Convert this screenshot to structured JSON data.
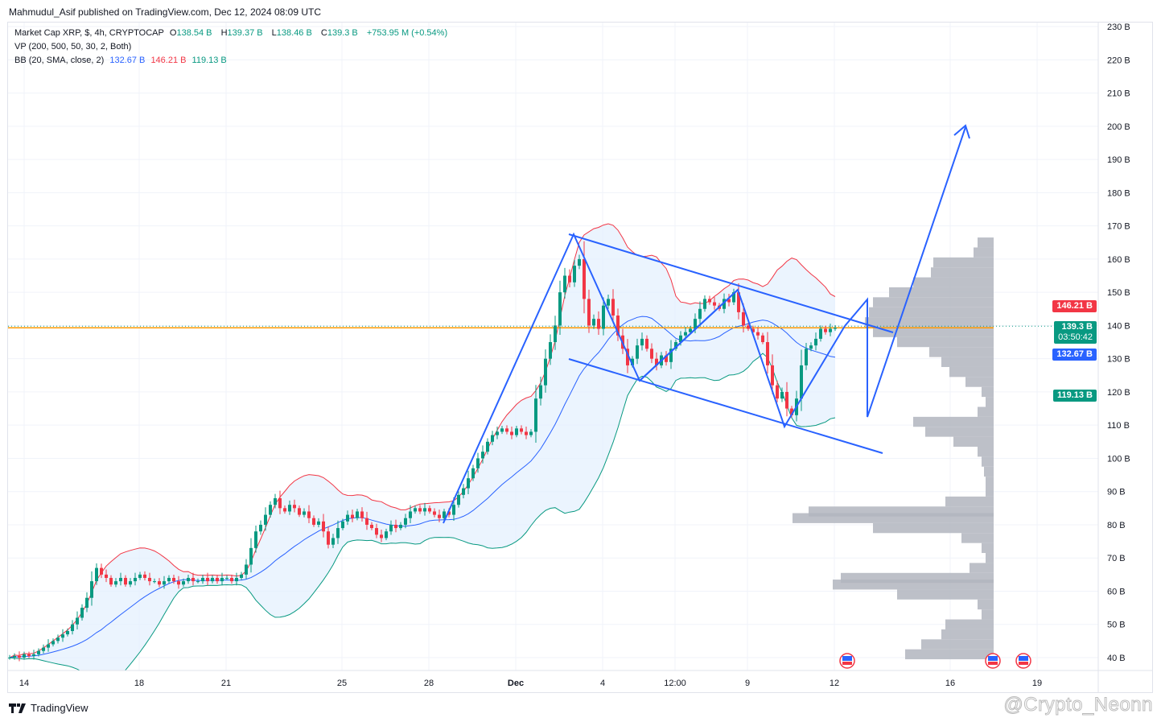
{
  "publisher": "Mahmudul_Asif published on TradingView.com, Dec 12, 2024 08:09 UTC",
  "legend": {
    "symbol": "Market Cap XRP, $, 4h, CRYPTOCAP",
    "o_label": "O",
    "o": "138.54 B",
    "h_label": "H",
    "h": "139.37 B",
    "l_label": "L",
    "l": "138.46 B",
    "c_label": "C",
    "c": "139.3 B",
    "change": "+753.95 M (+0.54%)",
    "vp": "VP (200, 500, 50, 30, 2, Both)",
    "bb": "BB (20, SMA, close, 2)",
    "bb_basis": "132.67 B",
    "bb_upper": "146.21 B",
    "bb_lower": "119.13 B"
  },
  "price_tags": {
    "upper": "146.21 B",
    "last": "139.3 B",
    "countdown": "03:50:42",
    "basis": "132.67 B",
    "lower": "119.13 B"
  },
  "colors": {
    "up": "#089981",
    "down": "#f23645",
    "bb_basis": "#2962ff",
    "bb_upper": "#f23645",
    "bb_lower": "#089981",
    "bb_fill": "#e3effd",
    "volume_profile": "#b2b5be",
    "drawing": "#2962ff",
    "last_price_line": "#ff9800"
  },
  "footer": {
    "logo": "TradingView",
    "watermark": "@Crypto_Neonn"
  },
  "chart_data": {
    "type": "candlestick",
    "interval": "4h",
    "unit": "B",
    "ylim": [
      40,
      230
    ],
    "y_ticks": [
      "230 B",
      "220 B",
      "210 B",
      "200 B",
      "190 B",
      "180 B",
      "170 B",
      "160 B",
      "150 B",
      "140 B",
      "130 B",
      "120 B",
      "110 B",
      "100 B",
      "90 B",
      "80 B",
      "70 B",
      "60 B",
      "50 B",
      "40 B"
    ],
    "x_ticks": [
      "14",
      "18",
      "21",
      "25",
      "28",
      "Dec",
      "4",
      "12:00",
      "9",
      "12",
      "16",
      "19"
    ],
    "grid": true,
    "closes": [
      40,
      40.5,
      40,
      41,
      40.5,
      41,
      42,
      43,
      44,
      45,
      46,
      47,
      48,
      50,
      52,
      55,
      58,
      63,
      67,
      65,
      64,
      62,
      63,
      64,
      62,
      63,
      64,
      65,
      64,
      63,
      63,
      62,
      63,
      64,
      63,
      62,
      63,
      64,
      63,
      63,
      64,
      63,
      64,
      63,
      64,
      64,
      63,
      64,
      65,
      68,
      73,
      78,
      80,
      83,
      86,
      88,
      85,
      84,
      86,
      85,
      83,
      84,
      82,
      80,
      81,
      78,
      74,
      76,
      79,
      81,
      83,
      82,
      84,
      82,
      80,
      79,
      77,
      76,
      78,
      80,
      79,
      80,
      82,
      84,
      85,
      84,
      85,
      84,
      83,
      82,
      84,
      83,
      86,
      89,
      91,
      94,
      97,
      100,
      102,
      105,
      107,
      108,
      109,
      108,
      107,
      109,
      108,
      107,
      108,
      118,
      122,
      130,
      135,
      140,
      150,
      155,
      153,
      158,
      160,
      148,
      140,
      142,
      139,
      146,
      148,
      143,
      137,
      133,
      128,
      130,
      134,
      136,
      133,
      130,
      128,
      131,
      129,
      133,
      135,
      137,
      138,
      139,
      142,
      145,
      148,
      147,
      146,
      145,
      148,
      147,
      150,
      144,
      140,
      139,
      138,
      137,
      135,
      128,
      122,
      118,
      120,
      115,
      113,
      118,
      128,
      133,
      134,
      136,
      139,
      138,
      139,
      139.3
    ],
    "last_price": 139.3,
    "bollinger": {
      "period": 20,
      "stddev": 2,
      "basis": 132.67,
      "upper": 146.21,
      "lower": 119.13
    },
    "volume_profile": [
      {
        "price": 165,
        "volume": 20
      },
      {
        "price": 162,
        "volume": 25
      },
      {
        "price": 159,
        "volume": 75
      },
      {
        "price": 156,
        "volume": 78
      },
      {
        "price": 153,
        "volume": 100
      },
      {
        "price": 150,
        "volume": 130
      },
      {
        "price": 147,
        "volume": 150
      },
      {
        "price": 144,
        "volume": 155
      },
      {
        "price": 141,
        "volume": 160
      },
      {
        "price": 138,
        "volume": 150
      },
      {
        "price": 135,
        "volume": 120
      },
      {
        "price": 132,
        "volume": 80
      },
      {
        "price": 129,
        "volume": 65
      },
      {
        "price": 126,
        "volume": 55
      },
      {
        "price": 123,
        "volume": 35
      },
      {
        "price": 120,
        "volume": 15
      },
      {
        "price": 117,
        "volume": 10
      },
      {
        "price": 114,
        "volume": 20
      },
      {
        "price": 111,
        "volume": 100
      },
      {
        "price": 108,
        "volume": 85
      },
      {
        "price": 105,
        "volume": 50
      },
      {
        "price": 102,
        "volume": 20
      },
      {
        "price": 99,
        "volume": 15
      },
      {
        "price": 96,
        "volume": 12
      },
      {
        "price": 93,
        "volume": 10
      },
      {
        "price": 90,
        "volume": 10
      },
      {
        "price": 87,
        "volume": 60
      },
      {
        "price": 84,
        "volume": 230
      },
      {
        "price": 82,
        "volume": 250
      },
      {
        "price": 79,
        "volume": 150
      },
      {
        "price": 76,
        "volume": 40
      },
      {
        "price": 73,
        "volume": 15
      },
      {
        "price": 70,
        "volume": 10
      },
      {
        "price": 67,
        "volume": 30
      },
      {
        "price": 64,
        "volume": 190
      },
      {
        "price": 62,
        "volume": 200
      },
      {
        "price": 59,
        "volume": 120
      },
      {
        "price": 56,
        "volume": 20
      },
      {
        "price": 53,
        "volume": 15
      },
      {
        "price": 50,
        "volume": 60
      },
      {
        "price": 47,
        "volume": 65
      },
      {
        "price": 44,
        "volume": 90
      },
      {
        "price": 41,
        "volume": 110
      }
    ],
    "events": [
      "us-economic-event",
      "us-economic-event",
      "us-economic-event"
    ]
  }
}
